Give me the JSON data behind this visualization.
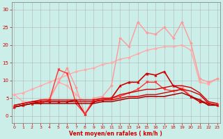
{
  "xlabel": "Vent moyen/en rafales ( km/h )",
  "background_color": "#cceee8",
  "grid_color": "#aaaaaa",
  "x_ticks": [
    0,
    1,
    2,
    3,
    4,
    5,
    6,
    7,
    8,
    9,
    10,
    11,
    12,
    13,
    14,
    15,
    16,
    17,
    18,
    19,
    20,
    21,
    22,
    23
  ],
  "y_ticks": [
    0,
    5,
    10,
    15,
    20,
    25,
    30
  ],
  "ylim": [
    -2,
    32
  ],
  "xlim": [
    -0.3,
    23.3
  ],
  "series": [
    {
      "x": [
        0,
        1,
        2,
        3,
        4,
        5,
        6,
        7,
        8,
        9,
        10,
        11,
        12,
        13,
        14,
        15,
        16,
        17,
        18,
        19,
        20,
        21,
        22,
        23
      ],
      "y": [
        6.0,
        6.5,
        7.5,
        8.5,
        9.5,
        10.5,
        11.5,
        12.5,
        13.0,
        13.5,
        14.5,
        15.0,
        16.0,
        16.5,
        17.5,
        18.5,
        19.0,
        19.5,
        19.5,
        20.0,
        18.5,
        9.5,
        9.0,
        10.5
      ],
      "color": "#ffaaaa",
      "lw": 1.0,
      "marker": "D",
      "ms": 2,
      "linestyle": "-"
    },
    {
      "x": [
        0,
        1,
        2,
        3,
        4,
        5,
        6,
        7,
        8,
        9,
        10,
        11,
        12,
        13,
        14,
        15,
        16,
        17,
        18,
        19,
        20,
        21,
        22,
        23
      ],
      "y": [
        6.0,
        4.0,
        4.0,
        4.5,
        4.5,
        9.5,
        8.5,
        6.0,
        4.0,
        4.0,
        4.0,
        4.5,
        4.5,
        5.0,
        5.5,
        5.5,
        5.5,
        5.5,
        6.0,
        8.5,
        5.5,
        4.0,
        3.5,
        3.5
      ],
      "color": "#ffaaaa",
      "lw": 1.0,
      "marker": "D",
      "ms": 2,
      "linestyle": "-"
    },
    {
      "x": [
        0,
        1,
        2,
        3,
        4,
        5,
        6,
        7,
        8,
        9,
        10,
        11,
        12,
        13,
        14,
        15,
        16,
        17,
        18,
        19,
        20,
        21,
        22,
        23
      ],
      "y": [
        2.5,
        3.0,
        3.5,
        4.5,
        5.0,
        9.5,
        13.5,
        8.0,
        0.5,
        5.0,
        5.5,
        8.5,
        22.0,
        19.5,
        26.5,
        23.5,
        23.0,
        25.0,
        22.0,
        26.5,
        20.5,
        10.5,
        9.5,
        10.5
      ],
      "color": "#ff9999",
      "lw": 1.0,
      "marker": "D",
      "ms": 2,
      "linestyle": "-"
    },
    {
      "x": [
        0,
        1,
        2,
        3,
        4,
        5,
        6,
        7,
        8,
        9,
        10,
        11,
        12,
        13,
        14,
        15,
        16,
        17,
        18,
        19,
        20,
        21,
        22,
        23
      ],
      "y": [
        2.5,
        3.0,
        3.5,
        4.0,
        4.0,
        4.0,
        4.0,
        4.5,
        0.5,
        4.0,
        4.5,
        5.0,
        8.5,
        9.5,
        9.5,
        12.0,
        11.5,
        12.5,
        8.5,
        7.5,
        5.5,
        4.0,
        3.5,
        3.0
      ],
      "color": "#cc0000",
      "lw": 1.2,
      "marker": "^",
      "ms": 2.5,
      "linestyle": "-"
    },
    {
      "x": [
        0,
        1,
        2,
        3,
        4,
        5,
        6,
        7,
        8,
        9,
        10,
        11,
        12,
        13,
        14,
        15,
        16,
        17,
        18,
        19,
        20,
        21,
        22,
        23
      ],
      "y": [
        2.5,
        3.0,
        3.5,
        3.5,
        4.5,
        13.0,
        12.0,
        3.5,
        0.5,
        4.5,
        4.5,
        5.0,
        5.5,
        6.5,
        7.5,
        9.5,
        9.5,
        7.5,
        7.0,
        7.5,
        5.5,
        4.5,
        3.5,
        3.0
      ],
      "color": "#ff3333",
      "lw": 1.0,
      "marker": "v",
      "ms": 2.5,
      "linestyle": "-"
    },
    {
      "x": [
        0,
        1,
        2,
        3,
        4,
        5,
        6,
        7,
        8,
        9,
        10,
        11,
        12,
        13,
        14,
        15,
        16,
        17,
        18,
        19,
        20,
        21,
        22,
        23
      ],
      "y": [
        3.0,
        3.5,
        4.0,
        4.5,
        4.5,
        4.5,
        4.5,
        4.5,
        4.5,
        4.5,
        5.0,
        5.0,
        6.0,
        6.5,
        7.0,
        7.5,
        7.5,
        8.0,
        8.5,
        8.5,
        8.0,
        6.5,
        4.0,
        3.5
      ],
      "color": "#cc0000",
      "lw": 1.0,
      "marker": null,
      "ms": 0,
      "linestyle": "-"
    },
    {
      "x": [
        0,
        1,
        2,
        3,
        4,
        5,
        6,
        7,
        8,
        9,
        10,
        11,
        12,
        13,
        14,
        15,
        16,
        17,
        18,
        19,
        20,
        21,
        22,
        23
      ],
      "y": [
        3.0,
        3.5,
        4.0,
        4.0,
        4.0,
        4.0,
        4.0,
        4.0,
        4.0,
        4.0,
        4.5,
        4.5,
        5.0,
        5.5,
        5.5,
        6.0,
        6.0,
        6.5,
        7.0,
        7.5,
        7.0,
        6.0,
        3.5,
        3.0
      ],
      "color": "#cc0000",
      "lw": 1.0,
      "marker": null,
      "ms": 0,
      "linestyle": "-"
    },
    {
      "x": [
        0,
        1,
        2,
        3,
        4,
        5,
        6,
        7,
        8,
        9,
        10,
        11,
        12,
        13,
        14,
        15,
        16,
        17,
        18,
        19,
        20,
        21,
        22,
        23
      ],
      "y": [
        2.5,
        3.0,
        3.5,
        3.5,
        3.5,
        3.5,
        3.5,
        3.5,
        3.5,
        3.5,
        4.0,
        4.0,
        4.5,
        5.0,
        5.0,
        5.5,
        5.5,
        5.5,
        6.0,
        6.5,
        5.5,
        4.5,
        3.0,
        3.0
      ],
      "color": "#880000",
      "lw": 1.0,
      "marker": null,
      "ms": 0,
      "linestyle": "-"
    }
  ]
}
